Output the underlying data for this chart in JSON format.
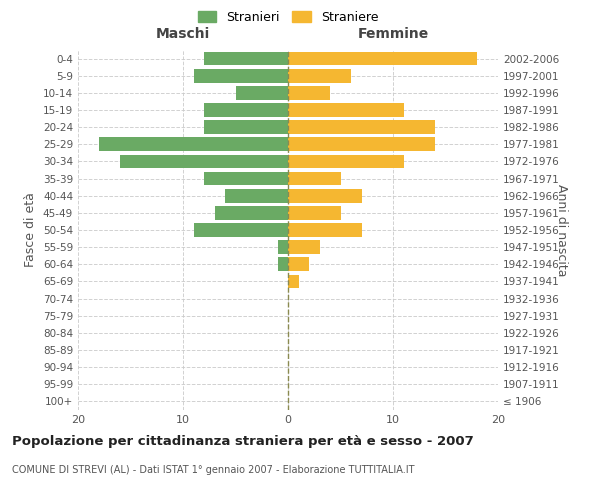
{
  "age_groups": [
    "100+",
    "95-99",
    "90-94",
    "85-89",
    "80-84",
    "75-79",
    "70-74",
    "65-69",
    "60-64",
    "55-59",
    "50-54",
    "45-49",
    "40-44",
    "35-39",
    "30-34",
    "25-29",
    "20-24",
    "15-19",
    "10-14",
    "5-9",
    "0-4"
  ],
  "birth_years": [
    "≤ 1906",
    "1907-1911",
    "1912-1916",
    "1917-1921",
    "1922-1926",
    "1927-1931",
    "1932-1936",
    "1937-1941",
    "1942-1946",
    "1947-1951",
    "1952-1956",
    "1957-1961",
    "1962-1966",
    "1967-1971",
    "1972-1976",
    "1977-1981",
    "1982-1986",
    "1987-1991",
    "1992-1996",
    "1997-2001",
    "2002-2006"
  ],
  "males": [
    0,
    0,
    0,
    0,
    0,
    0,
    0,
    0,
    1,
    1,
    9,
    7,
    6,
    8,
    16,
    18,
    8,
    8,
    5,
    9,
    8
  ],
  "females": [
    0,
    0,
    0,
    0,
    0,
    0,
    0,
    1,
    2,
    3,
    7,
    5,
    7,
    5,
    11,
    14,
    14,
    11,
    4,
    6,
    18
  ],
  "male_color": "#6aaa64",
  "female_color": "#f5b731",
  "grid_color": "#cccccc",
  "title": "Popolazione per cittadinanza straniera per età e sesso - 2007",
  "subtitle": "COMUNE DI STREVI (AL) - Dati ISTAT 1° gennaio 2007 - Elaborazione TUTTITALIA.IT",
  "legend_male": "Stranieri",
  "legend_female": "Straniere",
  "xlabel_left": "Maschi",
  "xlabel_right": "Femmine",
  "ylabel_left": "Fasce di età",
  "ylabel_right": "Anni di nascita",
  "xlim": 20
}
